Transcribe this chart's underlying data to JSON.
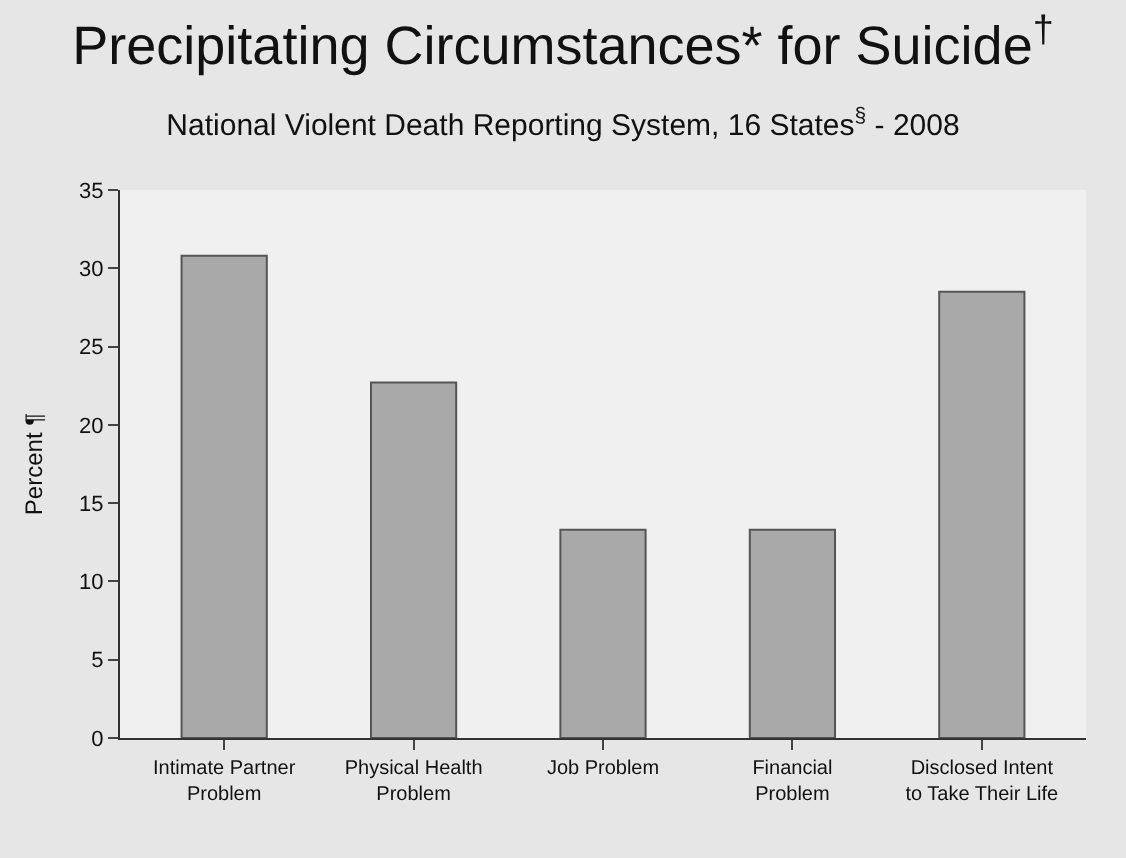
{
  "chart_data": {
    "type": "bar",
    "title": "Precipitating Circumstances* for Suicide$^{†}$",
    "subtitle": "National Violent Death Reporting System, 16 States$^{§}$ - 2008",
    "ylabel": "Percent ¶",
    "categories": [
      "Intimate Partner\nProblem",
      "Physical Health\nProblem",
      "Job Problem",
      "Financial\nProblem",
      "Disclosed Intent\nto Take Their Life"
    ],
    "values": [
      30.8,
      22.7,
      13.3,
      13.3,
      28.5
    ],
    "color": "#a9a9a9",
    "ylim": [
      0,
      35
    ],
    "yticks": [
      0,
      5,
      10,
      15,
      20,
      25,
      30,
      35
    ],
    "grid": false
  }
}
